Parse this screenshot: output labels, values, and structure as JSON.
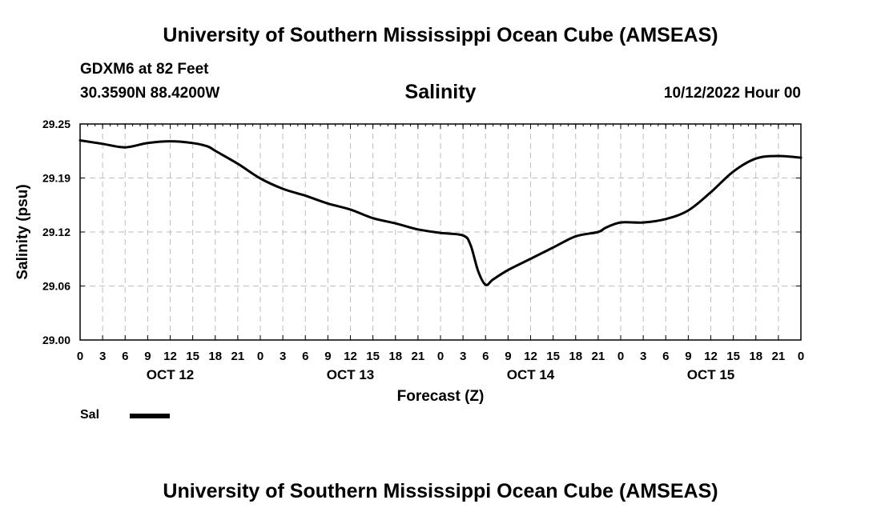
{
  "header": {
    "title": "University of Southern Mississippi Ocean Cube (AMSEAS)",
    "station": "GDXM6 at 82 Feet",
    "coordinates": "30.3590N  88.4200W",
    "chart_title": "Salinity",
    "datetime": "10/12/2022 Hour 00"
  },
  "footer": {
    "title": "University of Southern Mississippi Ocean Cube (AMSEAS)"
  },
  "legend": {
    "label": "Sal",
    "color": "#000000"
  },
  "chart_data": {
    "type": "line",
    "title": "Salinity",
    "xlabel": "Forecast (Z)",
    "ylabel": "Salinity (psu)",
    "ylim": [
      29.0,
      29.25
    ],
    "xlim": [
      0,
      96
    ],
    "yticks": [
      "29.00",
      "29.06",
      "29.12",
      "29.19",
      "29.25"
    ],
    "ytick_values": [
      29.0,
      29.0625,
      29.125,
      29.1875,
      29.25
    ],
    "xtick_labels": [
      "0",
      "3",
      "6",
      "9",
      "12",
      "15",
      "18",
      "21",
      "0",
      "3",
      "6",
      "9",
      "12",
      "15",
      "18",
      "21",
      "0",
      "3",
      "6",
      "9",
      "12",
      "15",
      "18",
      "21",
      "0",
      "3",
      "6",
      "9",
      "12",
      "15",
      "18",
      "21",
      "0"
    ],
    "day_labels": [
      {
        "label": "OCT 12",
        "hour": 12
      },
      {
        "label": "OCT 13",
        "hour": 36
      },
      {
        "label": "OCT 14",
        "hour": 60
      },
      {
        "label": "OCT 15",
        "hour": 84
      }
    ],
    "grid": true,
    "series": [
      {
        "name": "Sal",
        "color": "#000000",
        "x": [
          0,
          3,
          6,
          9,
          12,
          15,
          17,
          18,
          21,
          24,
          27,
          30,
          33,
          36,
          39,
          42,
          45,
          48,
          51,
          52,
          53,
          54,
          55,
          57,
          60,
          63,
          66,
          69,
          70,
          72,
          75,
          78,
          81,
          84,
          87,
          90,
          93,
          96
        ],
        "values": [
          29.231,
          29.227,
          29.223,
          29.228,
          29.23,
          29.228,
          29.224,
          29.219,
          29.204,
          29.187,
          29.175,
          29.167,
          29.158,
          29.151,
          29.141,
          29.135,
          29.128,
          29.124,
          29.121,
          29.11,
          29.08,
          29.064,
          29.07,
          29.081,
          29.094,
          29.107,
          29.12,
          29.125,
          29.13,
          29.136,
          29.136,
          29.14,
          29.15,
          29.171,
          29.195,
          29.21,
          29.213,
          29.211
        ]
      }
    ]
  }
}
